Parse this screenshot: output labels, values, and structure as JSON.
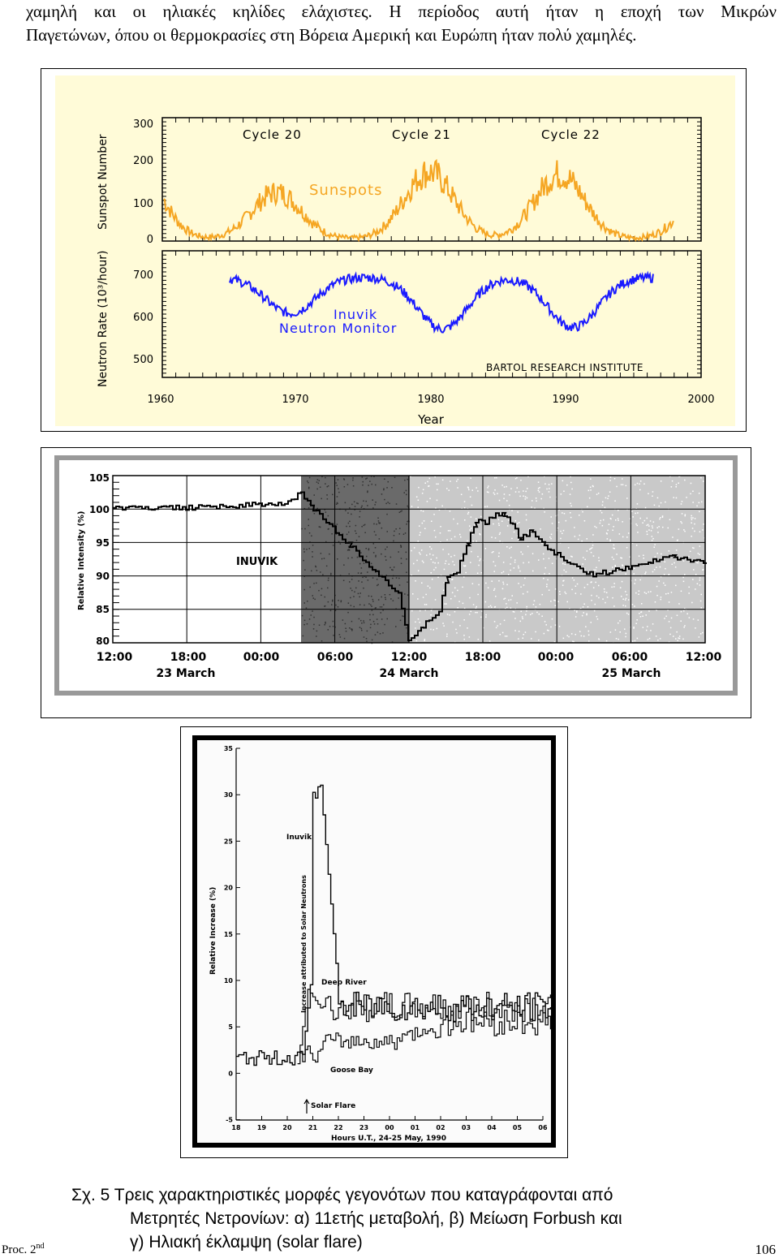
{
  "intro": {
    "line1": "χαμηλή και οι ηλιακές κηλίδες ελάχιστες. Η περίοδος αυτή ήταν η εποχή των Μικρών",
    "line2": "Παγετώνων, όπου οι θερμοκρασίες στη Βόρεια Αμερική και Ευρώπη ήταν πολύ χαμηλές."
  },
  "figure_a": {
    "title_cycles": [
      "Cycle 20",
      "Cycle 21",
      "Cycle 22"
    ],
    "sunspot_label": "Sunspots",
    "sunspot_axis": "Sunspot Number",
    "neutron_axis": "Neutron Rate (10³/hour)",
    "station_label_1": "Inuvik",
    "station_label_2": "Neutron Monitor",
    "institute": "BARTOL RESEARCH INSTITUTE",
    "xlabel": "Year",
    "sunspot_ticks": [
      "300",
      "200",
      "100",
      "0"
    ],
    "neutron_ticks": [
      "700",
      "600",
      "500"
    ],
    "year_ticks": [
      "1960",
      "1970",
      "1980",
      "1990",
      "2000"
    ],
    "sunspot_color": "#f5a623",
    "neutron_color": "#1a1aff",
    "background": "#fffbd8"
  },
  "figure_b": {
    "ylabel": "Relative Intensity (%)",
    "station": "INUVIK",
    "y_ticks": [
      "105",
      "100",
      "95",
      "90",
      "85",
      "80"
    ],
    "time_ticks": [
      "12:00",
      "18:00",
      "00:00",
      "06:00",
      "12:00",
      "18:00",
      "00:00",
      "06:00",
      "12:00"
    ],
    "date_labels": [
      "23 March",
      "24 March",
      "25 March"
    ]
  },
  "figure_c": {
    "ylabel": "Relative Increase (%)",
    "inner_label": "Increase attributed to Solar Neutrons",
    "y_ticks": [
      "35",
      "30",
      "25",
      "20",
      "15",
      "10",
      "5",
      "0",
      "-5"
    ],
    "x_ticks": [
      "18",
      "19",
      "20",
      "21",
      "22",
      "23",
      "00",
      "01",
      "02",
      "03",
      "04",
      "05",
      "06"
    ],
    "xlabel": "Hours U.T., 24-25 May, 1990",
    "labels": {
      "inuvik": "Inuvik",
      "deep_river": "Deep River",
      "goose_bay": "Goose Bay",
      "flare": "Solar Flare"
    }
  },
  "caption": {
    "line1": "Σχ. 5  Τρεις χαρακτηριστικές μορφές γεγονότων που καταγράφονται από",
    "line2": "Μετρητές Νετρονίων: α) 11ετής μεταβολή, β) Μείωση Forbush και",
    "line3": "γ) Ηλιακή έκλαμψη (solar flare)"
  },
  "footer": {
    "proc": "Proc. 2",
    "proc_sup": "nd",
    "page": "106"
  }
}
